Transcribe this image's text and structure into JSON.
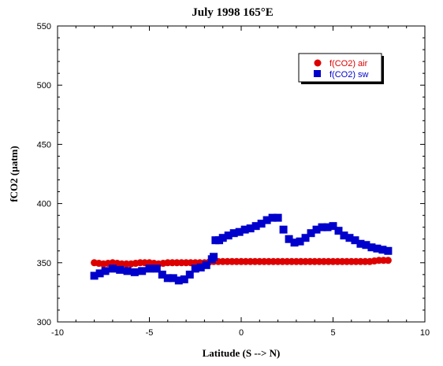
{
  "chart_data": {
    "type": "scatter",
    "title": "July 1998 165°E",
    "xlabel": "Latitude (S --> N)",
    "ylabel": "fCO2 (µatm)",
    "xlim": [
      -10,
      10
    ],
    "ylim": [
      300,
      550
    ],
    "xticks": [
      "-10",
      "-5",
      "0",
      "5",
      "10"
    ],
    "yticks": [
      "300",
      "350",
      "400",
      "450",
      "500",
      "550"
    ],
    "grid": false,
    "legend_position": "top-right",
    "series": [
      {
        "name": "f(CO2) air",
        "color": "#dd0000",
        "marker": "circle",
        "x": [
          -8.0,
          -7.5,
          -7.0,
          -6.5,
          -6.0,
          -5.5,
          -5.0,
          -4.5,
          -4.0,
          -3.5,
          -3.0,
          -2.5,
          -2.0,
          -1.5,
          -1.0,
          -0.5,
          0.0,
          0.5,
          1.0,
          1.5,
          2.0,
          2.5,
          3.0,
          3.5,
          4.0,
          4.5,
          5.0,
          5.5,
          6.0,
          6.5,
          7.0,
          7.5,
          8.0
        ],
        "y": [
          350,
          349,
          350,
          349,
          349,
          350,
          350,
          349,
          350,
          350,
          350,
          350,
          350,
          351,
          351,
          351,
          351,
          351,
          351,
          351,
          351,
          351,
          351,
          351,
          351,
          351,
          351,
          351,
          351,
          351,
          351,
          352,
          352
        ]
      },
      {
        "name": "f(CO2) sw",
        "color": "#0000cc",
        "marker": "square",
        "x": [
          -8.0,
          -7.7,
          -7.4,
          -7.0,
          -6.6,
          -6.2,
          -5.8,
          -5.4,
          -5.0,
          -4.6,
          -4.3,
          -4.0,
          -3.7,
          -3.4,
          -3.1,
          -2.8,
          -2.5,
          -2.2,
          -1.9,
          -1.6,
          -1.5,
          -1.4,
          -1.2,
          -1.0,
          -0.7,
          -0.4,
          -0.1,
          0.2,
          0.5,
          0.8,
          1.1,
          1.4,
          1.7,
          2.0,
          2.3,
          2.6,
          2.9,
          3.2,
          3.5,
          3.8,
          4.1,
          4.4,
          4.7,
          5.0,
          5.3,
          5.6,
          5.9,
          6.2,
          6.5,
          6.8,
          7.1,
          7.4,
          7.7,
          8.0
        ],
        "y": [
          339,
          341,
          343,
          345,
          344,
          343,
          342,
          343,
          345,
          345,
          340,
          337,
          337,
          335,
          336,
          340,
          345,
          346,
          348,
          353,
          355,
          369,
          369,
          371,
          373,
          375,
          376,
          378,
          379,
          381,
          383,
          386,
          388,
          388,
          378,
          370,
          367,
          368,
          371,
          375,
          378,
          380,
          380,
          381,
          377,
          373,
          371,
          369,
          366,
          365,
          363,
          362,
          361,
          360
        ]
      }
    ]
  }
}
